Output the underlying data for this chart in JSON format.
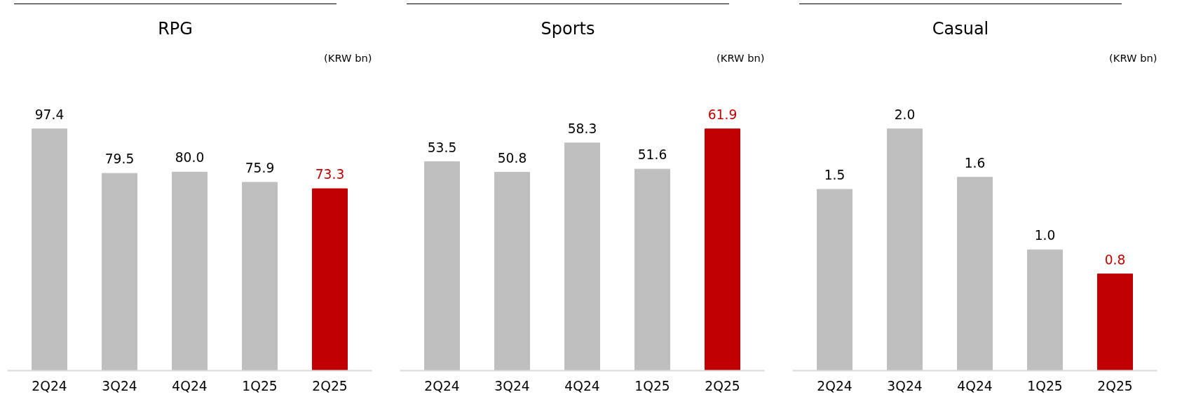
{
  "chart_data": [
    {
      "type": "bar",
      "title": "RPG",
      "annotations": [
        "(KRW bn)"
      ],
      "categories": [
        "2Q24",
        "3Q24",
        "4Q24",
        "1Q25",
        "2Q25"
      ],
      "values": [
        97.4,
        79.5,
        80.0,
        75.9,
        73.3
      ],
      "value_labels": [
        "97.4",
        "79.5",
        "80.0",
        "75.9",
        "73.3"
      ],
      "colors": [
        "#bfbfbf",
        "#bfbfbf",
        "#bfbfbf",
        "#bfbfbf",
        "#c00000"
      ]
    },
    {
      "type": "bar",
      "title": "Sports",
      "annotations": [
        "(KRW bn)"
      ],
      "categories": [
        "2Q24",
        "3Q24",
        "4Q24",
        "1Q25",
        "2Q25"
      ],
      "values": [
        53.5,
        50.8,
        58.3,
        51.6,
        61.9
      ],
      "value_labels": [
        "53.5",
        "50.8",
        "58.3",
        "51.6",
        "61.9"
      ],
      "colors": [
        "#bfbfbf",
        "#bfbfbf",
        "#bfbfbf",
        "#bfbfbf",
        "#c00000"
      ]
    },
    {
      "type": "bar",
      "title": "Casual",
      "annotations": [
        "(KRW bn)"
      ],
      "categories": [
        "2Q24",
        "3Q24",
        "4Q24",
        "1Q25",
        "2Q25"
      ],
      "values": [
        1.5,
        2.0,
        1.6,
        1.0,
        0.8
      ],
      "value_labels": [
        "1.5",
        "2.0",
        "1.6",
        "1.0",
        "0.8"
      ],
      "colors": [
        "#bfbfbf",
        "#bfbfbf",
        "#bfbfbf",
        "#bfbfbf",
        "#c00000"
      ]
    }
  ]
}
